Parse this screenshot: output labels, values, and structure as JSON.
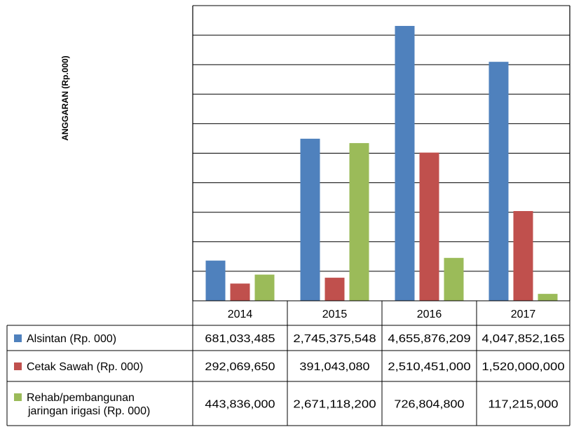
{
  "chart_data": {
    "type": "bar",
    "title": "",
    "ylabel": "ANGGARAN (Rp.000)",
    "xlabel": "",
    "categories": [
      "2014",
      "2015",
      "2016",
      "2017"
    ],
    "ylim": [
      0,
      5000000000
    ],
    "grid": true,
    "legend": "data-table",
    "series": [
      {
        "name": "Alsintan (Rp. 000)",
        "color": "#4F81BD",
        "values": [
          681033485,
          2745375548,
          4655876209,
          4047852165
        ],
        "labels": [
          "681,033,485",
          "2,745,375,548",
          "4,655,876,209",
          "4,047,852,165"
        ]
      },
      {
        "name": "Cetak Sawah (Rp. 000)",
        "color": "#C0504D",
        "values": [
          292069650,
          391043080,
          2510451000,
          1520000000
        ],
        "labels": [
          "292,069,650",
          "391,043,080",
          "2,510,451,000",
          "1,520,000,000"
        ]
      },
      {
        "name_lines": [
          "Rehab/pembangunan",
          "jaringan irigasi (Rp. 000)"
        ],
        "color": "#9BBB59",
        "values": [
          443836000,
          2671118200,
          726804800,
          117215000
        ],
        "labels": [
          "443,836,000",
          "2,671,118,200",
          "726,804,800",
          "117,215,000"
        ]
      }
    ]
  }
}
